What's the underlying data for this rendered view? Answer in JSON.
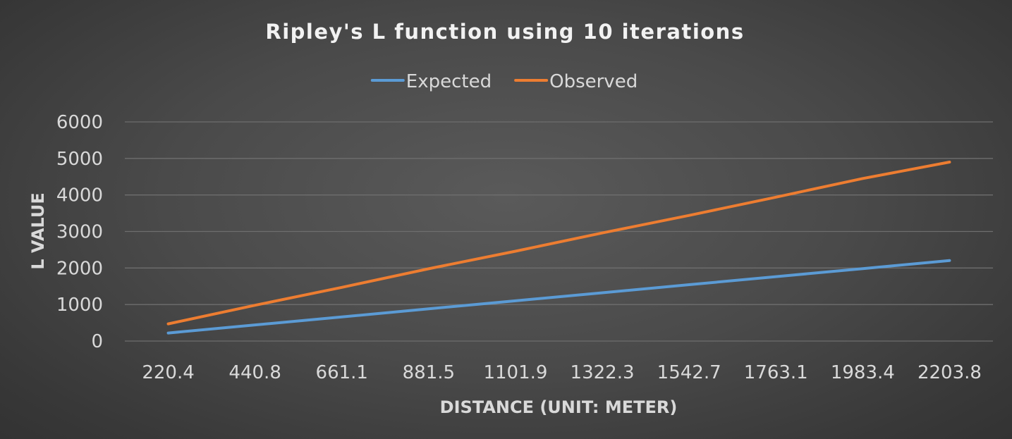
{
  "chart_data": {
    "type": "line",
    "title": "Ripley's L function using 10 iterations",
    "xlabel": "DISTANCE (UNIT: METER)",
    "ylabel": "L VALUE",
    "categories": [
      "220.4",
      "440.8",
      "661.1",
      "881.5",
      "1101.9",
      "1322.3",
      "1542.7",
      "1763.1",
      "1983.4",
      "2203.8"
    ],
    "ylim": [
      0,
      6000
    ],
    "yticks": [
      "0",
      "1000",
      "2000",
      "3000",
      "4000",
      "5000",
      "6000"
    ],
    "grid": true,
    "legend_position": "top",
    "series": [
      {
        "name": "Expected",
        "color": "#5b9bd5",
        "values": [
          220,
          441,
          661,
          882,
          1102,
          1322,
          1543,
          1763,
          1983,
          2204
        ]
      },
      {
        "name": "Observed",
        "color": "#ed7d31",
        "values": [
          470,
          980,
          1470,
          1980,
          2460,
          2960,
          3440,
          3940,
          4450,
          4900
        ]
      }
    ]
  }
}
